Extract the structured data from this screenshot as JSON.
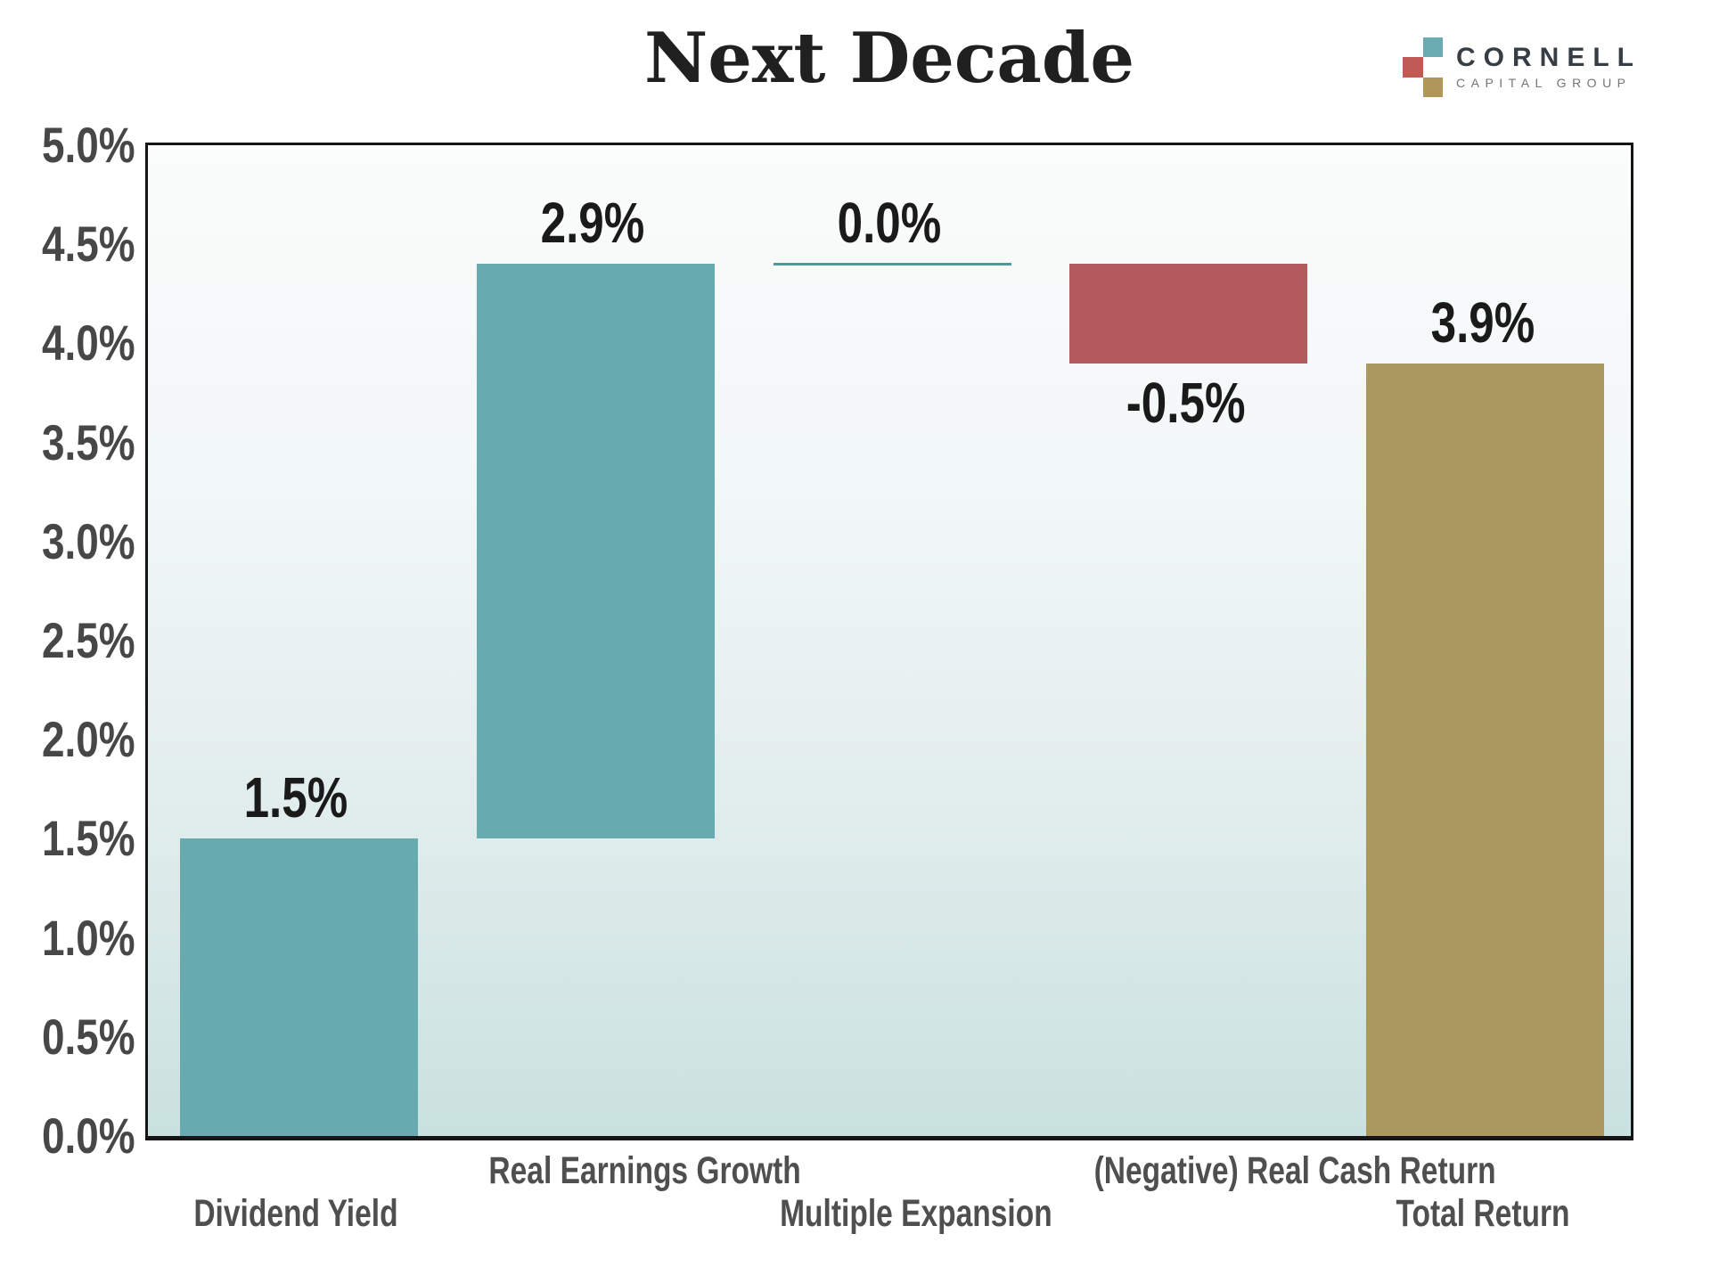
{
  "header": {
    "title": "Next Decade"
  },
  "logo": {
    "brand": "CORNELL",
    "tagline": "CAPITAL GROUP",
    "square_colors": {
      "teal": "#6aacb2",
      "red": "#c05a55",
      "gold": "#b09759"
    }
  },
  "colors": {
    "bar_teal": "#67abb1",
    "bar_red": "#b55a5c",
    "bar_gold": "#ab985f",
    "zero_line_teal": "#4d999b",
    "plot_border": "#151515",
    "bg_gradient_top": "#fbfcfc",
    "bg_gradient_bottom": "#c9e1e0",
    "tick_text": "#474747",
    "category_text": "#4f4f4f",
    "value_text": "#1a1a1a",
    "title_text": "#202020"
  },
  "chart_data": {
    "type": "bar",
    "subtype": "waterfall",
    "title": "Next Decade",
    "xlabel": "",
    "ylabel": "",
    "ylim": [
      0,
      5
    ],
    "ytick_step": 0.5,
    "ytick_labels": [
      "5.0%",
      "4.5%",
      "4.0%",
      "3.5%",
      "3.0%",
      "2.5%",
      "2.0%",
      "1.5%",
      "1.0%",
      "0.5%",
      "0.0%"
    ],
    "grid": false,
    "legend": false,
    "categories": [
      "Dividend Yield",
      "Real Earnings Growth",
      "Multiple Expansion",
      "(Negative) Real Cash Return",
      "Total Return"
    ],
    "bars": [
      {
        "label": "Dividend Yield",
        "value": 1.5,
        "base": 0.0,
        "top": 1.5,
        "value_label": "1.5%",
        "color_key": "bar_teal",
        "style": "bar",
        "value_label_pos": "above",
        "label_row": "lower"
      },
      {
        "label": "Real Earnings Growth",
        "value": 2.9,
        "base": 1.5,
        "top": 4.4,
        "value_label": "2.9%",
        "color_key": "bar_teal",
        "style": "bar",
        "value_label_pos": "above",
        "label_row": "upper"
      },
      {
        "label": "Multiple Expansion",
        "value": 0.0,
        "base": 4.4,
        "top": 4.4,
        "value_label": "0.0%",
        "color_key": "zero_line_teal",
        "style": "line",
        "value_label_pos": "above",
        "label_row": "lower"
      },
      {
        "label": "(Negative) Real Cash Return",
        "value": -0.5,
        "base": 4.4,
        "top": 3.9,
        "value_label": "-0.5%",
        "color_key": "bar_red",
        "style": "bar",
        "value_label_pos": "below",
        "label_row": "upper"
      },
      {
        "label": "Total Return",
        "value": 3.9,
        "base": 0.0,
        "top": 3.9,
        "value_label": "3.9%",
        "color_key": "bar_gold",
        "style": "bar",
        "value_label_pos": "above",
        "label_row": "lower"
      }
    ]
  }
}
